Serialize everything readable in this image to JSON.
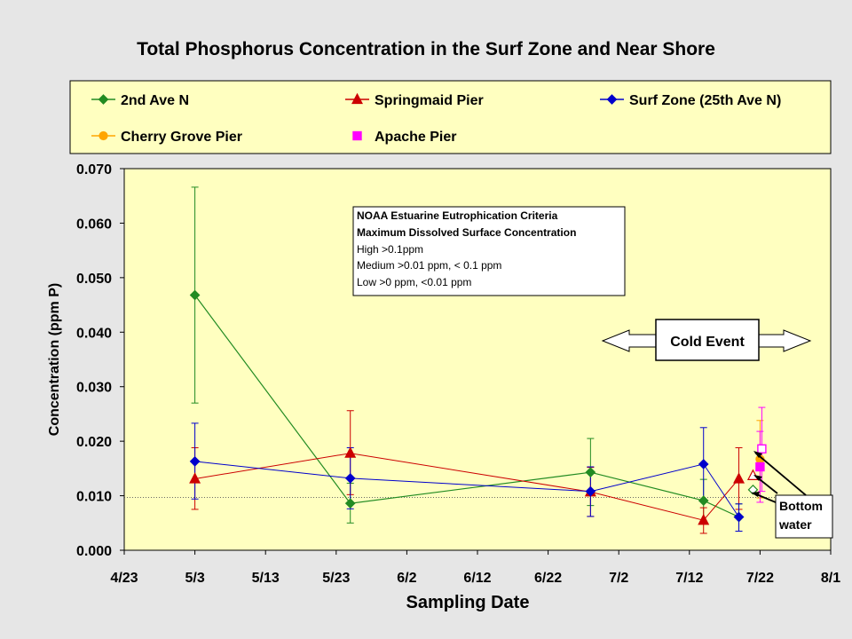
{
  "chart_data": {
    "type": "line",
    "title": "Total Phosphorus Concentration in the Surf Zone and Near Shore",
    "xlabel": "Sampling Date",
    "ylabel": "Concentration (ppm P)",
    "x_ticks": [
      "4/23",
      "5/3",
      "5/13",
      "5/23",
      "6/2",
      "6/12",
      "6/22",
      "7/2",
      "7/12",
      "7/22",
      "8/1"
    ],
    "y_ticks": [
      "0.000",
      "0.010",
      "0.020",
      "0.030",
      "0.040",
      "0.050",
      "0.060",
      "0.070"
    ],
    "ylim": [
      0,
      0.07
    ],
    "xlim": [
      "4/23",
      "8/1"
    ],
    "grid": false,
    "reference_line": 0.0097,
    "series": [
      {
        "name": "2nd Ave N",
        "color": "#228b22",
        "marker": "diamond",
        "points": [
          {
            "x": "5/3",
            "y": 0.0468,
            "lo": 0.027,
            "hi": 0.0666
          },
          {
            "x": "5/25",
            "y": 0.0086,
            "lo": 0.005,
            "hi": 0.0123
          },
          {
            "x": "6/28",
            "y": 0.0143,
            "lo": 0.0082,
            "hi": 0.0205
          },
          {
            "x": "7/14",
            "y": 0.0091,
            "lo": 0.005,
            "hi": 0.013
          },
          {
            "x": "7/19",
            "y": 0.0061,
            "lo": 0.0035,
            "hi": 0.0085
          }
        ]
      },
      {
        "name": "Springmaid Pier",
        "color": "#cc0000",
        "marker": "triangle",
        "points": [
          {
            "x": "5/3",
            "y": 0.0131,
            "lo": 0.0075,
            "hi": 0.0188
          },
          {
            "x": "5/25",
            "y": 0.0178,
            "lo": 0.0102,
            "hi": 0.0256
          },
          {
            "x": "6/28",
            "y": 0.0107,
            "lo": 0.0062,
            "hi": 0.0152
          },
          {
            "x": "7/14",
            "y": 0.0055,
            "lo": 0.0031,
            "hi": 0.0078
          },
          {
            "x": "7/19",
            "y": 0.0131,
            "lo": 0.0075,
            "hi": 0.0188
          }
        ]
      },
      {
        "name": "Surf Zone (25th Ave N)",
        "color": "#0000cc",
        "marker": "diamond",
        "points": [
          {
            "x": "5/3",
            "y": 0.0163,
            "lo": 0.0094,
            "hi": 0.0233
          },
          {
            "x": "5/25",
            "y": 0.0132,
            "lo": 0.0076,
            "hi": 0.0188
          },
          {
            "x": "6/28",
            "y": 0.0108,
            "lo": 0.0062,
            "hi": 0.0153
          },
          {
            "x": "7/14",
            "y": 0.0158,
            "lo": 0.0091,
            "hi": 0.0225
          },
          {
            "x": "7/19",
            "y": 0.0061,
            "lo": 0.0035,
            "hi": 0.0085
          }
        ]
      },
      {
        "name": "Cherry Grove Pier",
        "color": "#ffa500",
        "marker": "circle",
        "points": [
          {
            "x": "7/22",
            "y": 0.0167,
            "lo": 0.0096,
            "hi": 0.0238
          }
        ]
      },
      {
        "name": "Apache Pier",
        "color": "#ff00ff",
        "marker": "square",
        "points": [
          {
            "x": "7/22",
            "y": 0.0153,
            "lo": 0.0088,
            "hi": 0.0218
          }
        ]
      }
    ],
    "bottom_water": [
      {
        "series": "2nd Ave N",
        "x": "7/21",
        "y": 0.0111,
        "color": "#228b22",
        "marker": "diamond-open"
      },
      {
        "series": "Springmaid Pier",
        "x": "7/21",
        "y": 0.0137,
        "color": "#cc0000",
        "marker": "triangle-open"
      },
      {
        "series": "Apache Pier",
        "x": "7/22",
        "y": 0.0186,
        "color": "#ff00ff",
        "marker": "square-open",
        "lo": 0.0108,
        "hi": 0.0262
      }
    ],
    "annotations": {
      "criteria_lines": [
        "NOAA  Estuarine Eutrophication Criteria",
        "Maximum Dissolved Surface Concentration",
        "High >0.1ppm",
        "Medium >0.01 ppm, < 0.1 ppm",
        "Low >0 ppm, <0.01 ppm"
      ],
      "cold_event": "Cold Event",
      "bottom_water_label": [
        "Bottom",
        "water"
      ]
    }
  }
}
